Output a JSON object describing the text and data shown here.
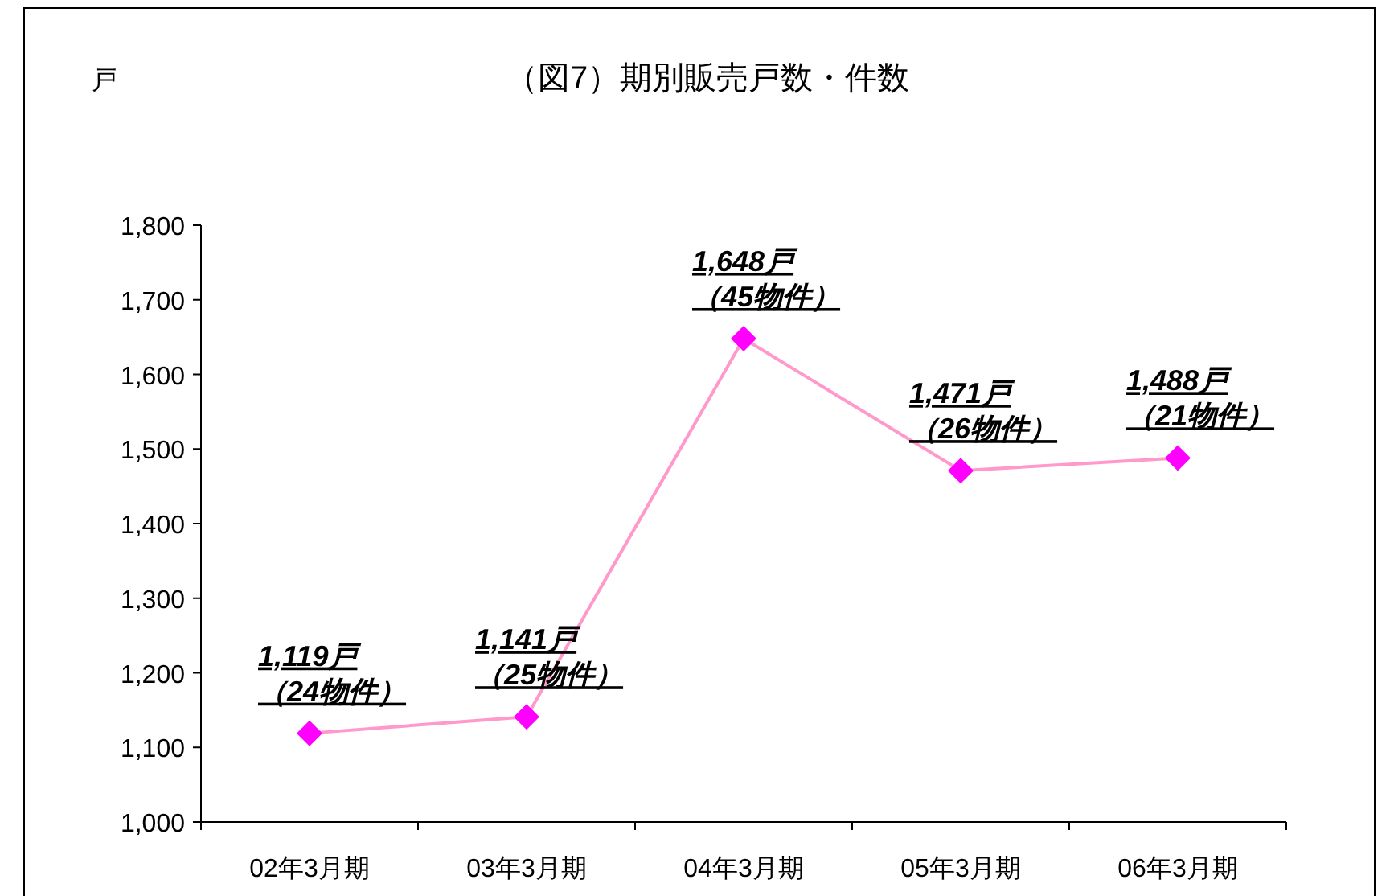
{
  "chart_data": {
    "type": "line",
    "title": "（図7）期別販売戸数・件数",
    "ylabel": "戸",
    "categories": [
      "02年3月期",
      "03年3月期",
      "04年3月期",
      "05年3月期",
      "06年3月期"
    ],
    "series": [
      {
        "color": "#ff99cc",
        "values": [
          1119,
          1141,
          1648,
          1471,
          1488
        ],
        "colors": [
          "#ff00ff",
          "#ff00ff",
          "#ff00ff",
          "#ff00ff",
          "#ff00ff"
        ],
        "value_labels": [
          "1,119戸（24物件）",
          "1,141戸（25物件）",
          "1,648戸（45物件）",
          "1,471戸（26物件）",
          "1,488戸（21物件）"
        ]
      }
    ],
    "marker": "diamond",
    "ylim": [
      1000,
      1800
    ],
    "yticks": [
      {
        "value": 1000,
        "label": "1,000"
      },
      {
        "value": 1100,
        "label": "1,100"
      },
      {
        "value": 1200,
        "label": "1,200"
      },
      {
        "value": 1300,
        "label": "1,300"
      },
      {
        "value": 1400,
        "label": "1,400"
      },
      {
        "value": 1500,
        "label": "1,500"
      },
      {
        "value": 1600,
        "label": "1,600"
      },
      {
        "value": 1700,
        "label": "1,700"
      },
      {
        "value": 1800,
        "label": "1,800"
      }
    ],
    "grid": false
  }
}
